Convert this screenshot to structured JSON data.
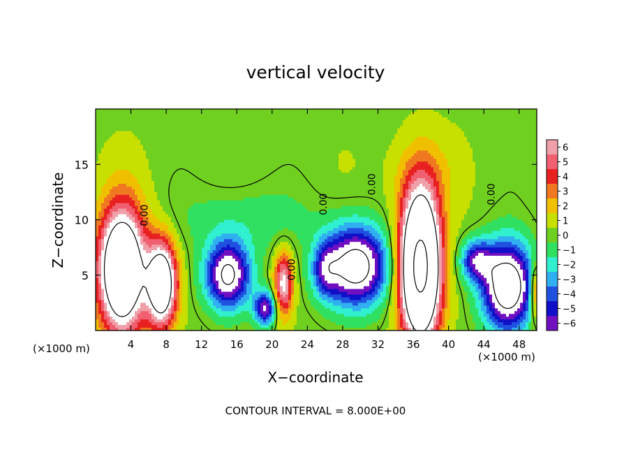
{
  "chart_data": {
    "type": "heatmap",
    "title": "vertical velocity",
    "xlabel": "X−coordinate",
    "ylabel": "Z−coordinate",
    "x_unit_label": "(×1000 m)",
    "footer": "CONTOUR INTERVAL = 8.000E+00",
    "xlim": [
      0,
      50
    ],
    "ylim": [
      0,
      20
    ],
    "x_ticks": [
      "4",
      "8",
      "12",
      "16",
      "20",
      "24",
      "28",
      "32",
      "36",
      "40",
      "44",
      "48"
    ],
    "x_tick_values": [
      4,
      8,
      12,
      16,
      20,
      24,
      28,
      32,
      36,
      40,
      44,
      48
    ],
    "y_ticks": [
      "5",
      "10",
      "15"
    ],
    "y_tick_values": [
      5,
      10,
      15
    ],
    "colorbar": {
      "min": -6,
      "max": 6,
      "tick_labels": [
        "6",
        "5",
        "4",
        "3",
        "2",
        "1",
        "0",
        "−1",
        "−2",
        "−3",
        "−4",
        "−5",
        "−6"
      ],
      "tick_values": [
        6,
        5,
        4,
        3,
        2,
        1,
        0,
        -1,
        -2,
        -3,
        -4,
        -5,
        -6
      ],
      "colors": [
        "#f0a0a8",
        "#f06070",
        "#e82020",
        "#f07820",
        "#f0c000",
        "#c8e000",
        "#70d020",
        "#30e060",
        "#30f0d0",
        "#30b0f0",
        "#2050e0",
        "#1010c8",
        "#7010c0"
      ]
    },
    "contour_labels": [
      {
        "text": "0.00",
        "x": 5.9,
        "y": 10.4
      },
      {
        "text": "0.00",
        "x": 22.6,
        "y": 5.5
      },
      {
        "text": "0.00",
        "x": 26.2,
        "y": 11.4
      },
      {
        "text": "0.00",
        "x": 31.7,
        "y": 13.2
      },
      {
        "text": "0.00",
        "x": 45.2,
        "y": 12.3
      }
    ],
    "features": [
      {
        "kind": "updraft",
        "x": 3.0,
        "z": 5.5,
        "rx": 2.6,
        "rz": 5.5,
        "w": 14
      },
      {
        "kind": "updraft",
        "x": 7.5,
        "z": 4.2,
        "rx": 1.6,
        "rz": 3.7,
        "w": 12
      },
      {
        "kind": "updraft",
        "x": 36.8,
        "z": 5.8,
        "rx": 2.2,
        "rz": 6.5,
        "w": 18
      },
      {
        "kind": "updraft",
        "x": 21.3,
        "z": 4.2,
        "rx": 1.0,
        "rz": 2.8,
        "w": 7
      },
      {
        "kind": "updraft",
        "x": 49.8,
        "z": 3.5,
        "rx": 0.6,
        "rz": 2.5,
        "w": 5
      },
      {
        "kind": "downdraft",
        "x": 15.0,
        "z": 5.0,
        "rx": 2.5,
        "rz": 3.0,
        "w": -9
      },
      {
        "kind": "downdraft",
        "x": 19.2,
        "z": 2.0,
        "rx": 1.2,
        "rz": 1.5,
        "w": -7
      },
      {
        "kind": "downdraft",
        "x": 29.5,
        "z": 5.8,
        "rx": 3.5,
        "rz": 3.5,
        "w": -10
      },
      {
        "kind": "downdraft",
        "x": 46.7,
        "z": 4.0,
        "rx": 2.8,
        "rz": 3.8,
        "w": -11
      },
      {
        "kind": "downdraft",
        "x": 43.2,
        "z": 6.3,
        "rx": 1.8,
        "rz": 1.8,
        "w": -6
      },
      {
        "kind": "downdraft",
        "x": 26.0,
        "z": 5.5,
        "rx": 1.5,
        "rz": 2.5,
        "w": -4
      }
    ]
  }
}
